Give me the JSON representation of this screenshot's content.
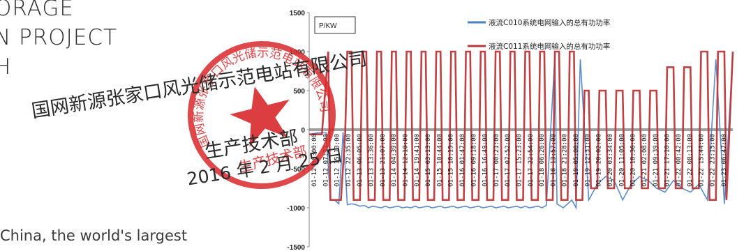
{
  "page": {
    "heading_lines": [
      "ORAGE",
      "N PROJECT",
      "H"
    ],
    "caption": "China, the world's largest"
  },
  "seal": {
    "org_line": "国网新源张家口风光储示范电站有限公司",
    "dept_line": "生产技术部",
    "date_line": "2016 年 2 月 25 日",
    "ring_text": "国网新源张家口风光储示范电站有限公司",
    "inner_text": "生产技术部",
    "ink_color": "#d8282b"
  },
  "chart_data": {
    "type": "line",
    "y_unit_label": "P/KW",
    "ylim": [
      -1500,
      1500
    ],
    "yticks": [
      -1500,
      -1000,
      -500,
      0,
      500,
      1000,
      1500
    ],
    "grid": false,
    "legend_position": "top-right",
    "x_tick_labels": [
      "01-12 00:00:00",
      "01-12 07:31:00",
      "01-12 15:13:00",
      "01-12 22:35:00",
      "01-13 06:05:00",
      "01-13 13:36:00",
      "01-13 21:07:00",
      "01-14 04:39:00",
      "01-14 12:10:00",
      "01-14 19:41:00",
      "01-15 03:13:00",
      "01-15 10:44:00",
      "01-15 18:15:00",
      "01-16 01:47:00",
      "01-16 09:18:00",
      "01-16 16:49:00",
      "01-17 00:21:00",
      "01-17 07:52:00",
      "01-17 15:23:00",
      "01-17 22:54:00",
      "01-18 06:26:00",
      "01-18 13:57:00",
      "01-18 21:28:00",
      "01-19 05:00:00",
      "01-19 12:31:00",
      "01-19 20:02:00",
      "01-20 03:34:00",
      "01-20 11:05:00",
      "01-20 18:36:00",
      "01-21 02:08:00",
      "01-21 09:39:00",
      "01-21 17:10:00",
      "01-22 00:42:00",
      "01-22 08:13:00",
      "01-22 15:44:00",
      "01-22 23:15:00",
      "01-23 06:47:00"
    ],
    "series": [
      {
        "name": "液流C010系统电网输入的总有功功率",
        "color": "#4a7fc1",
        "profile": [
          [
            0.0,
            -60
          ],
          [
            0.02,
            -40
          ],
          [
            0.04,
            -40
          ],
          [
            0.05,
            -900
          ],
          [
            0.06,
            -900
          ],
          [
            0.07,
            -950
          ],
          [
            0.08,
            -30
          ],
          [
            0.09,
            -960
          ],
          [
            0.1,
            -950
          ],
          [
            0.11,
            -960
          ],
          [
            0.12,
            -980
          ],
          [
            0.13,
            -970
          ],
          [
            0.14,
            -1000
          ],
          [
            0.15,
            -980
          ],
          [
            0.16,
            -990
          ],
          [
            0.17,
            -1000
          ],
          [
            0.18,
            -980
          ],
          [
            0.19,
            -1000
          ],
          [
            0.2,
            -990
          ],
          [
            0.21,
            -980
          ],
          [
            0.22,
            -1000
          ],
          [
            0.23,
            -990
          ],
          [
            0.24,
            -1000
          ],
          [
            0.25,
            -980
          ],
          [
            0.26,
            -1000
          ],
          [
            0.27,
            -990
          ],
          [
            0.28,
            -980
          ],
          [
            0.29,
            -1000
          ],
          [
            0.3,
            -990
          ],
          [
            0.31,
            -980
          ],
          [
            0.32,
            -1000
          ],
          [
            0.33,
            -990
          ],
          [
            0.34,
            -980
          ],
          [
            0.35,
            -1000
          ],
          [
            0.36,
            -990
          ],
          [
            0.37,
            -980
          ],
          [
            0.38,
            -1000
          ],
          [
            0.39,
            -990
          ],
          [
            0.4,
            -980
          ],
          [
            0.41,
            -1000
          ],
          [
            0.42,
            -990
          ],
          [
            0.43,
            -980
          ],
          [
            0.44,
            -1000
          ],
          [
            0.45,
            -990
          ],
          [
            0.46,
            -980
          ],
          [
            0.47,
            -1000
          ],
          [
            0.48,
            -990
          ],
          [
            0.49,
            -980
          ],
          [
            0.5,
            -1000
          ],
          [
            0.51,
            -980
          ],
          [
            0.52,
            -1000
          ],
          [
            0.53,
            -990
          ],
          [
            0.54,
            -980
          ],
          [
            0.55,
            -1000
          ],
          [
            0.56,
            -970
          ],
          [
            0.58,
            950
          ],
          [
            0.585,
            -950
          ],
          [
            0.6,
            -1000
          ],
          [
            0.62,
            -900
          ],
          [
            0.63,
            -1000
          ],
          [
            0.64,
            900
          ],
          [
            0.66,
            -900
          ],
          [
            0.68,
            -700
          ],
          [
            0.7,
            -600
          ],
          [
            0.72,
            -650
          ],
          [
            0.74,
            -900
          ],
          [
            0.76,
            -700
          ],
          [
            0.78,
            -600
          ],
          [
            0.8,
            -650
          ],
          [
            0.82,
            -750
          ],
          [
            0.84,
            -800
          ],
          [
            0.86,
            -650
          ],
          [
            0.88,
            -750
          ],
          [
            0.9,
            -800
          ],
          [
            0.92,
            -700
          ],
          [
            0.94,
            -900
          ],
          [
            0.96,
            900
          ],
          [
            0.98,
            -950
          ],
          [
            1.0,
            950
          ]
        ]
      },
      {
        "name": "液流C011系统电网输入的总有功功率",
        "color": "#b8383b",
        "profile": [
          [
            0.0,
            -60
          ],
          [
            0.03,
            -60
          ],
          [
            0.045,
            1000
          ],
          [
            0.05,
            -900
          ],
          [
            0.06,
            -900
          ],
          [
            0.075,
            -900
          ],
          [
            0.085,
            -50
          ],
          [
            0.09,
            1000
          ],
          [
            0.1,
            1000
          ],
          [
            0.105,
            -900
          ],
          [
            0.12,
            -900
          ],
          [
            0.125,
            1000
          ],
          [
            0.135,
            1000
          ],
          [
            0.14,
            -900
          ],
          [
            0.155,
            -900
          ],
          [
            0.16,
            1000
          ],
          [
            0.17,
            1000
          ],
          [
            0.175,
            -900
          ],
          [
            0.19,
            -900
          ],
          [
            0.195,
            1000
          ],
          [
            0.205,
            1000
          ],
          [
            0.21,
            -900
          ],
          [
            0.225,
            -900
          ],
          [
            0.23,
            1000
          ],
          [
            0.24,
            1000
          ],
          [
            0.245,
            -900
          ],
          [
            0.26,
            -900
          ],
          [
            0.265,
            1000
          ],
          [
            0.275,
            1000
          ],
          [
            0.28,
            -900
          ],
          [
            0.295,
            -900
          ],
          [
            0.3,
            1000
          ],
          [
            0.31,
            1000
          ],
          [
            0.315,
            -900
          ],
          [
            0.33,
            -900
          ],
          [
            0.335,
            1000
          ],
          [
            0.345,
            1000
          ],
          [
            0.35,
            -900
          ],
          [
            0.365,
            -900
          ],
          [
            0.37,
            1000
          ],
          [
            0.38,
            1000
          ],
          [
            0.385,
            -900
          ],
          [
            0.4,
            -900
          ],
          [
            0.405,
            1000
          ],
          [
            0.415,
            1000
          ],
          [
            0.42,
            -900
          ],
          [
            0.435,
            -900
          ],
          [
            0.44,
            1000
          ],
          [
            0.45,
            1000
          ],
          [
            0.455,
            -900
          ],
          [
            0.47,
            -900
          ],
          [
            0.475,
            1000
          ],
          [
            0.485,
            1000
          ],
          [
            0.49,
            -900
          ],
          [
            0.505,
            -900
          ],
          [
            0.51,
            1000
          ],
          [
            0.52,
            1000
          ],
          [
            0.525,
            -900
          ],
          [
            0.54,
            -900
          ],
          [
            0.545,
            1000
          ],
          [
            0.555,
            1000
          ],
          [
            0.56,
            -900
          ],
          [
            0.575,
            -900
          ],
          [
            0.58,
            1000
          ],
          [
            0.59,
            1000
          ],
          [
            0.595,
            -900
          ],
          [
            0.61,
            -900
          ],
          [
            0.615,
            1000
          ],
          [
            0.625,
            1000
          ],
          [
            0.63,
            -900
          ],
          [
            0.645,
            -900
          ],
          [
            0.65,
            500
          ],
          [
            0.66,
            500
          ],
          [
            0.665,
            -750
          ],
          [
            0.68,
            -750
          ],
          [
            0.685,
            500
          ],
          [
            0.7,
            500
          ],
          [
            0.705,
            -750
          ],
          [
            0.72,
            -750
          ],
          [
            0.725,
            500
          ],
          [
            0.74,
            500
          ],
          [
            0.745,
            -750
          ],
          [
            0.76,
            -750
          ],
          [
            0.765,
            500
          ],
          [
            0.78,
            500
          ],
          [
            0.785,
            -750
          ],
          [
            0.8,
            -750
          ],
          [
            0.805,
            500
          ],
          [
            0.82,
            500
          ],
          [
            0.825,
            -750
          ],
          [
            0.84,
            -750
          ],
          [
            0.845,
            800
          ],
          [
            0.86,
            800
          ],
          [
            0.865,
            -750
          ],
          [
            0.88,
            -750
          ],
          [
            0.885,
            800
          ],
          [
            0.9,
            800
          ],
          [
            0.905,
            -750
          ],
          [
            0.92,
            -750
          ],
          [
            0.925,
            1000
          ],
          [
            0.94,
            1000
          ],
          [
            0.945,
            -900
          ],
          [
            0.96,
            -900
          ],
          [
            0.965,
            1000
          ],
          [
            0.98,
            1000
          ],
          [
            0.985,
            -900
          ],
          [
            1.0,
            1000
          ]
        ]
      }
    ]
  }
}
